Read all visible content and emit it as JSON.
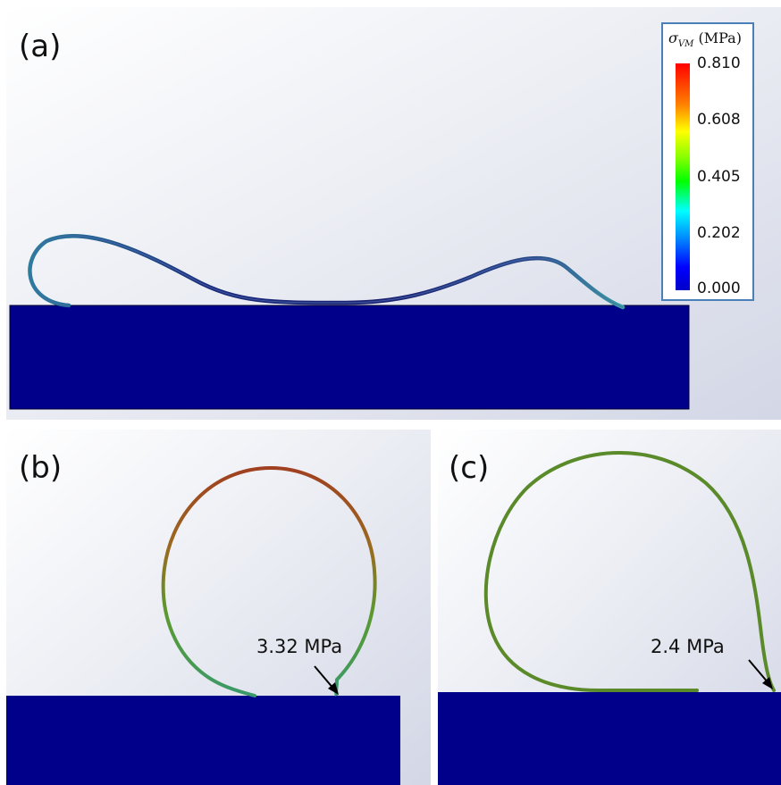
{
  "panels": {
    "a": {
      "label": "(a)"
    },
    "b": {
      "label": "(b)",
      "annotation": "3.32 MPa"
    },
    "c": {
      "label": "(c)",
      "annotation": "2.4 MPa"
    }
  },
  "legend": {
    "symbol": "σ",
    "subscript": "VM",
    "unit": "(MPa)",
    "ticks": [
      "0.810",
      "0.608",
      "0.405",
      "0.202",
      "0.000"
    ]
  },
  "colors": {
    "substrate": "#00008b",
    "background_top": "#ffffff",
    "background_bottom": "#d6d9e8",
    "legend_border": "#4a7fb8"
  }
}
